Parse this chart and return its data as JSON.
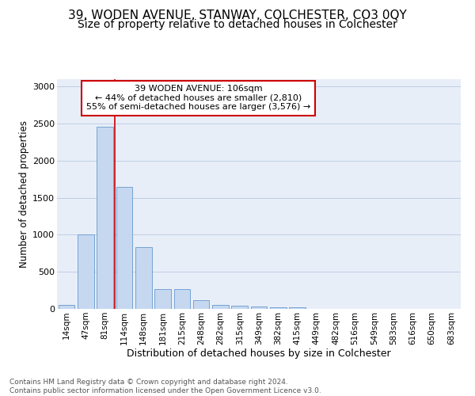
{
  "title": "39, WODEN AVENUE, STANWAY, COLCHESTER, CO3 0QY",
  "subtitle": "Size of property relative to detached houses in Colchester",
  "xlabel": "Distribution of detached houses by size in Colchester",
  "ylabel": "Number of detached properties",
  "categories": [
    "14sqm",
    "47sqm",
    "81sqm",
    "114sqm",
    "148sqm",
    "181sqm",
    "215sqm",
    "248sqm",
    "282sqm",
    "315sqm",
    "349sqm",
    "382sqm",
    "415sqm",
    "449sqm",
    "482sqm",
    "516sqm",
    "549sqm",
    "583sqm",
    "616sqm",
    "650sqm",
    "683sqm"
  ],
  "values": [
    50,
    1000,
    2460,
    1650,
    830,
    270,
    270,
    120,
    50,
    45,
    30,
    25,
    25,
    0,
    0,
    0,
    0,
    0,
    0,
    0,
    0
  ],
  "bar_color": "#c5d8f0",
  "bar_edge_color": "#6699cc",
  "vline_color": "#cc0000",
  "annotation_text": "39 WODEN AVENUE: 106sqm\n← 44% of detached houses are smaller (2,810)\n55% of semi-detached houses are larger (3,576) →",
  "annotation_box_color": "#ffffff",
  "annotation_box_edge_color": "#cc0000",
  "ylim": [
    0,
    3100
  ],
  "yticks": [
    0,
    500,
    1000,
    1500,
    2000,
    2500,
    3000
  ],
  "footer_text": "Contains HM Land Registry data © Crown copyright and database right 2024.\nContains public sector information licensed under the Open Government Licence v3.0.",
  "title_fontsize": 11,
  "subtitle_fontsize": 10,
  "xlabel_fontsize": 9,
  "ylabel_fontsize": 8.5,
  "tick_fontsize": 7.5,
  "footer_fontsize": 6.5,
  "plot_bg_color": "#e8eef8"
}
